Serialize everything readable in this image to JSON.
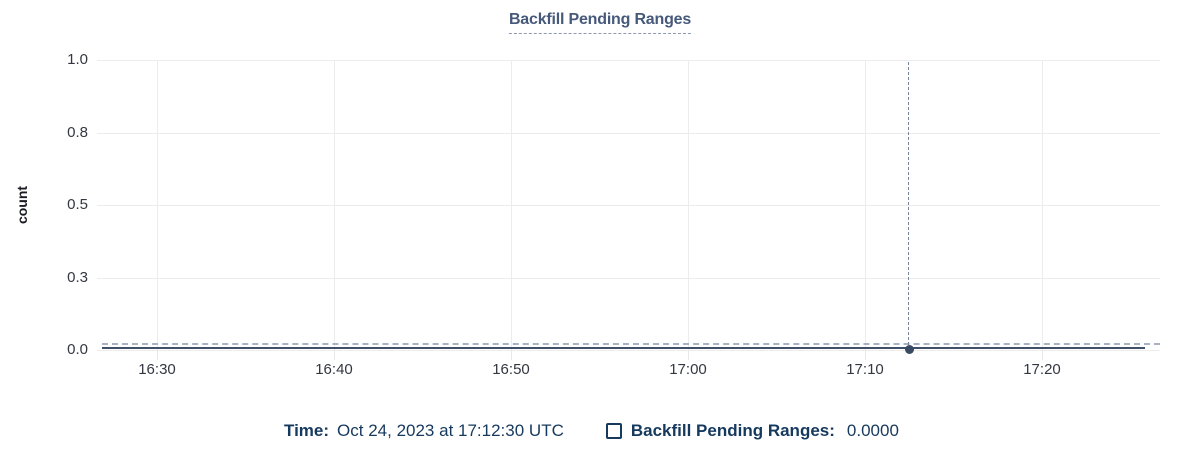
{
  "chart_data": {
    "type": "line",
    "title": "Backfill Pending Ranges",
    "xlabel": "",
    "ylabel": "count",
    "ylim": [
      0,
      1
    ],
    "grid": true,
    "legend_position": "bottom",
    "x_ticks": [
      "16:30",
      "16:40",
      "16:50",
      "17:00",
      "17:10",
      "17:20"
    ],
    "y_ticks": [
      "1.0",
      "0.8",
      "0.5",
      "0.3",
      "0.0"
    ],
    "series": [
      {
        "name": "Backfill Pending Ranges",
        "color": "#3e506a",
        "x": [
          "16:30",
          "16:40",
          "16:50",
          "17:00",
          "17:10",
          "17:20"
        ],
        "values": [
          0,
          0,
          0,
          0,
          0,
          0
        ]
      }
    ],
    "hover_point": {
      "time": "17:12:30",
      "value": 0.0
    }
  },
  "legend": {
    "time_label": "Time:",
    "time_value": "Oct 24, 2023 at 17:12:30 UTC",
    "series_label": "Backfill Pending Ranges:",
    "series_value": "0.0000"
  },
  "colors": {
    "background": "#ffffff",
    "title_text": "#47597b",
    "title_underline": "#8a99b5",
    "tick_label": "#343741",
    "axis_title": "#1a1c21",
    "gridline": "#ececec",
    "series_line": "#3e506a",
    "zero_dashed_line": "#a7b2c3",
    "crosshair": "#76849b",
    "marker": "#394a63",
    "legend_text": "#16395e"
  }
}
